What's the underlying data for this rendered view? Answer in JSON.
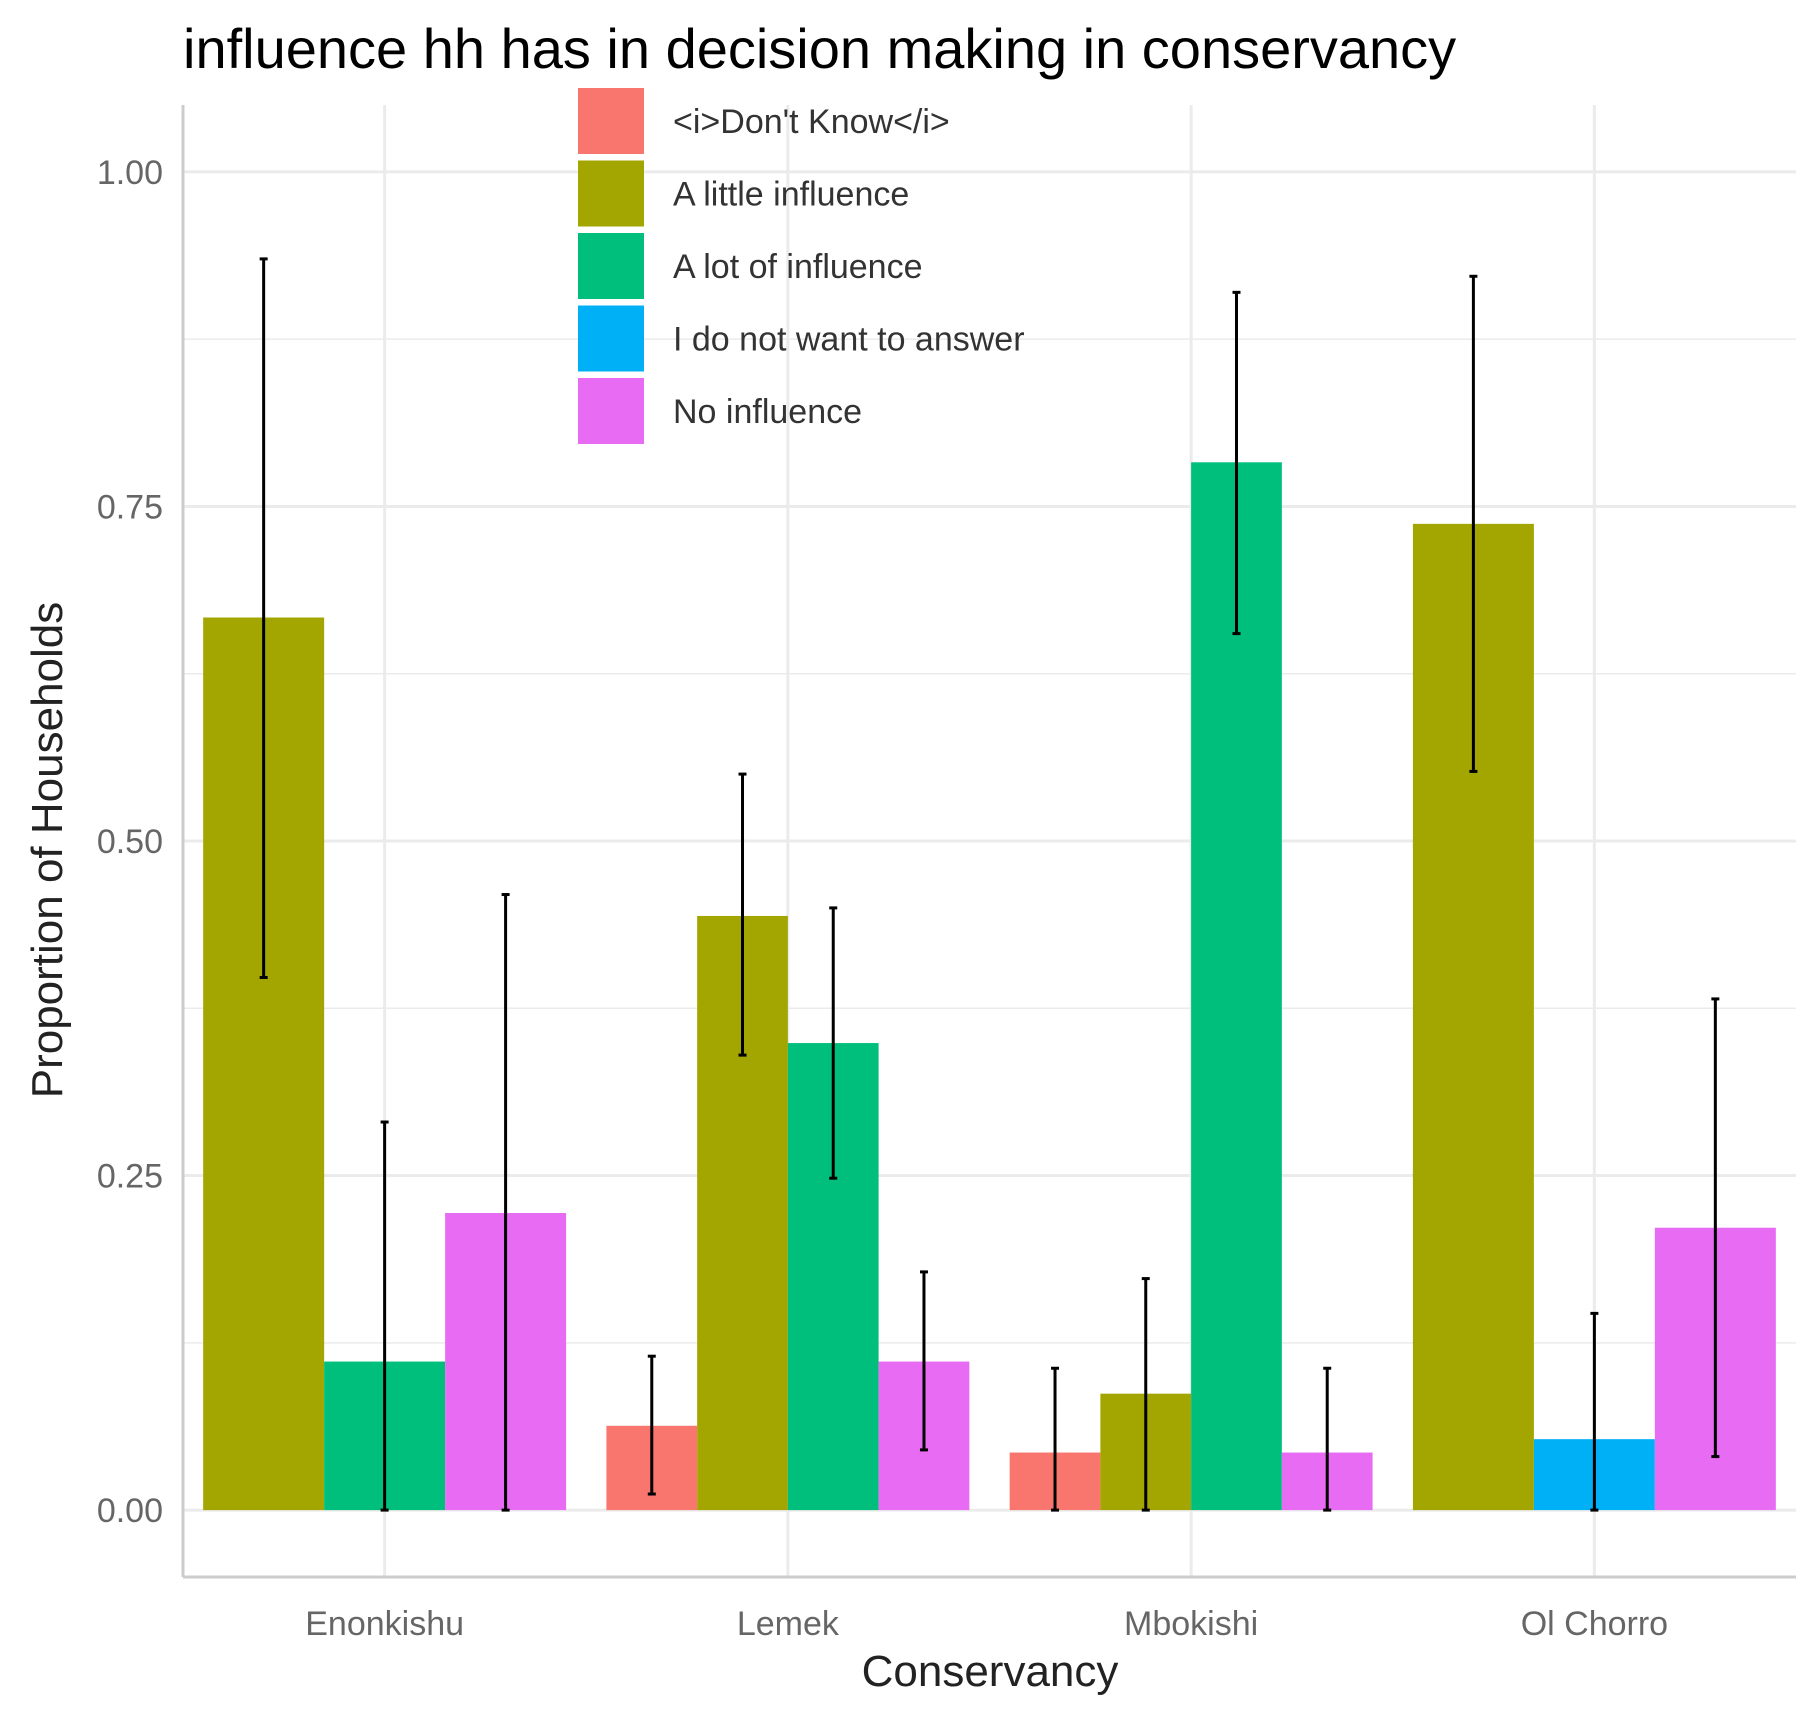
{
  "chart_data": {
    "type": "bar",
    "title": "influence hh has in decision making in conservancy",
    "xlabel": "Conservancy",
    "ylabel": "Proportion of Households",
    "categories": [
      "Enonkishu",
      "Lemek",
      "Mbokishi",
      "Ol Chorro"
    ],
    "ylim": [
      -0.05,
      1.05
    ],
    "yticks": [
      "0.00",
      "0.25",
      "0.50",
      "0.75",
      "1.00"
    ],
    "grid": true,
    "legend_position": "top-center",
    "series": [
      {
        "name": "<i>Don't Know</i>",
        "color": "#F8766D",
        "values": [
          null,
          0.063,
          0.043,
          null
        ],
        "lower": [
          null,
          0.012,
          0.0,
          null
        ],
        "upper": [
          null,
          0.115,
          0.106,
          null
        ]
      },
      {
        "name": "A little influence",
        "color": "#A3A500",
        "values": [
          0.667,
          0.444,
          0.087,
          0.737
        ],
        "lower": [
          0.398,
          0.34,
          0.0,
          0.552
        ],
        "upper": [
          0.935,
          0.55,
          0.173,
          0.922
        ]
      },
      {
        "name": "A lot of influence",
        "color": "#00BF7D",
        "values": [
          0.111,
          0.349,
          0.783,
          null
        ],
        "lower": [
          0.0,
          0.248,
          0.655,
          null
        ],
        "upper": [
          0.29,
          0.45,
          0.91,
          null
        ]
      },
      {
        "name": "I do not want to answer",
        "color": "#00B0F6",
        "values": [
          null,
          null,
          null,
          0.053
        ],
        "lower": [
          null,
          null,
          null,
          0.0
        ],
        "upper": [
          null,
          null,
          null,
          0.147
        ]
      },
      {
        "name": "No influence",
        "color": "#E76BF3",
        "values": [
          0.222,
          0.111,
          0.043,
          0.211
        ],
        "lower": [
          0.0,
          0.045,
          0.0,
          0.04
        ],
        "upper": [
          0.46,
          0.178,
          0.106,
          0.382
        ]
      }
    ]
  }
}
